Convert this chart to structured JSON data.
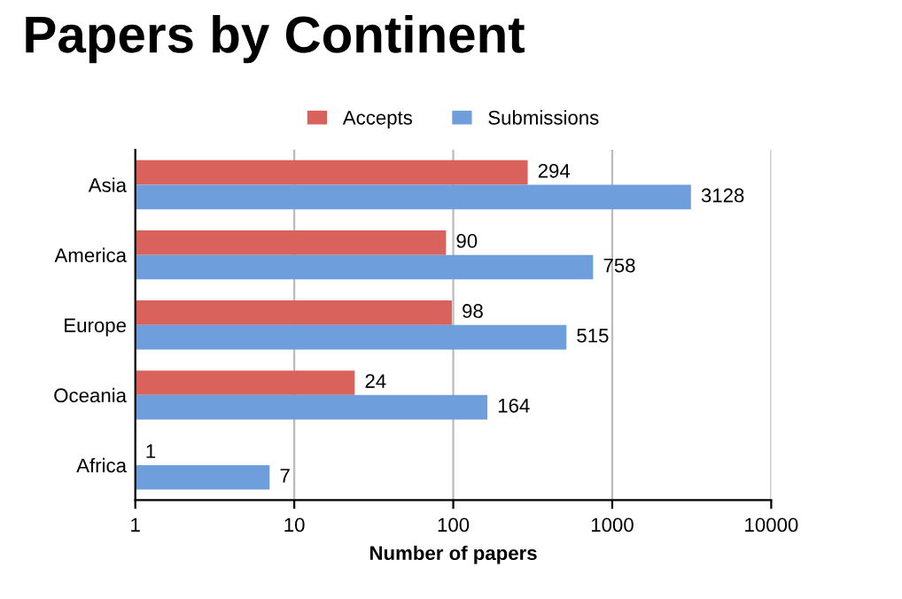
{
  "chart_data": {
    "type": "bar",
    "orientation": "horizontal",
    "title": "Papers by Continent",
    "xlabel": "Number of papers",
    "categories": [
      "Asia",
      "America",
      "Europe",
      "Oceania",
      "Africa"
    ],
    "series": [
      {
        "name": "Accepts",
        "color": "#d9625c",
        "values": [
          294,
          90,
          98,
          24,
          1
        ]
      },
      {
        "name": "Submissions",
        "color": "#6e9fdc",
        "values": [
          3128,
          758,
          515,
          164,
          7
        ]
      }
    ],
    "log": "x",
    "xlim": [
      1,
      10000
    ],
    "xticks": [
      1,
      10,
      100,
      1000,
      10000
    ],
    "grid": "x",
    "legend": "top",
    "data_labels": true
  }
}
